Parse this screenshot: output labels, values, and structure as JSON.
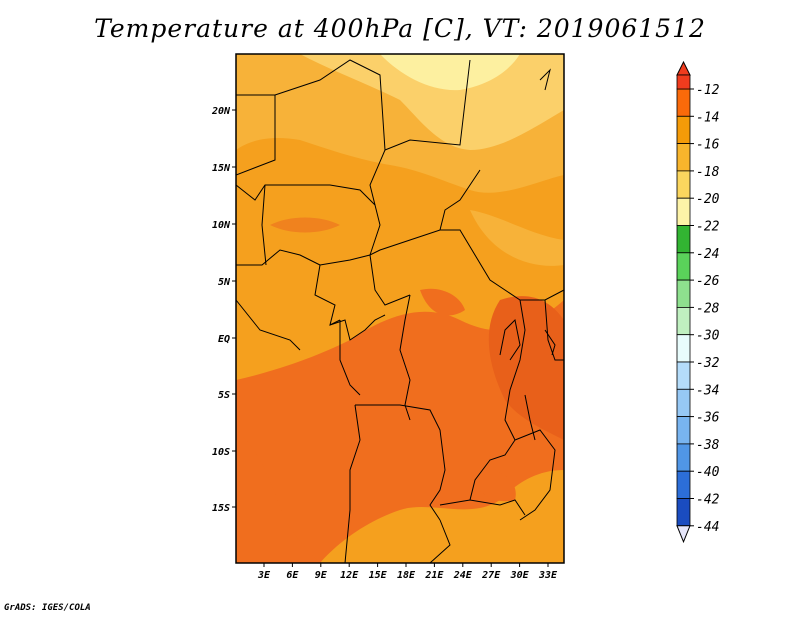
{
  "title": "Temperature at 400hPa [C], VT: 2019061512",
  "credit": "GrADS: IGES/COLA",
  "lat_ticks": [
    "20N",
    "15N",
    "10N",
    "5N",
    "EQ",
    "5S",
    "10S",
    "15S"
  ],
  "lon_ticks": [
    "3E",
    "6E",
    "9E",
    "12E",
    "15E",
    "18E",
    "21E",
    "24E",
    "27E",
    "30E",
    "33E"
  ],
  "colorbar": {
    "labels": [
      "-12",
      "-14",
      "-16",
      "-18",
      "-20",
      "-22",
      "-24",
      "-26",
      "-28",
      "-30",
      "-32",
      "-34",
      "-36",
      "-38",
      "-40",
      "-42",
      "-44"
    ],
    "colors": [
      "#f03c1e",
      "#fa6a0a",
      "#f59b08",
      "#f8b52c",
      "#fbd65e",
      "#fdf3a8",
      "#32b432",
      "#5ad25a",
      "#8ee08e",
      "#c0f0c0",
      "#e8fcfc",
      "#b4dcfa",
      "#96c8f5",
      "#78b4f0",
      "#5096e6",
      "#2c6ed8",
      "#1a4cc0",
      "#0c24a0",
      "#e6e6fa"
    ]
  },
  "field_colors": {
    "warm_m12": "#f06e1e",
    "m14": "#f5a01e",
    "m16": "#f7b239",
    "m18": "#fbd06a",
    "m20": "#fdf0a0",
    "boundary": "#000000"
  }
}
